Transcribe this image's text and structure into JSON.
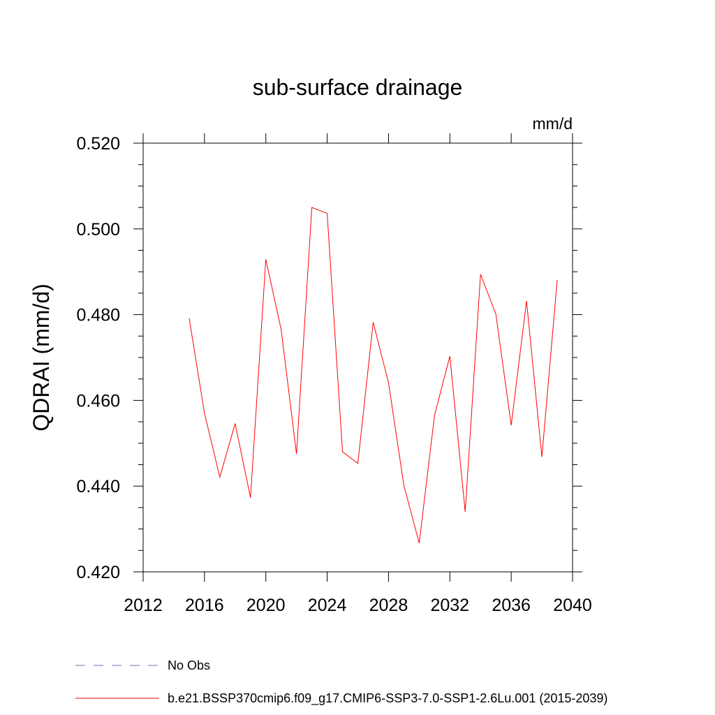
{
  "chart_data": {
    "type": "line",
    "title": "sub-surface drainage",
    "units_label": "mm/d",
    "ylabel": "QDRAI  (mm/d)",
    "xlabel": "",
    "xlim": [
      2012,
      2040
    ],
    "ylim": [
      0.42,
      0.52
    ],
    "x_ticks": [
      "2012",
      "2016",
      "2020",
      "2024",
      "2028",
      "2032",
      "2036",
      "2040"
    ],
    "y_ticks": [
      "0.420",
      "0.440",
      "0.460",
      "0.480",
      "0.500",
      "0.520"
    ],
    "grid": false,
    "series": [
      {
        "name": "b.e21.BSSP370cmip6.f09_g17.CMIP6-SSP3-7.0-SSP1-2.6Lu.001 (2015-2039)",
        "color": "#ff0000",
        "x": [
          2015,
          2016,
          2017,
          2018,
          2019,
          2020,
          2021,
          2022,
          2023,
          2024,
          2025,
          2026,
          2027,
          2028,
          2029,
          2030,
          2031,
          2032,
          2033,
          2034,
          2035,
          2036,
          2037,
          2038,
          2039
        ],
        "values": [
          0.4792,
          0.457,
          0.4421,
          0.4546,
          0.4373,
          0.4929,
          0.4765,
          0.4475,
          0.505,
          0.5036,
          0.448,
          0.4453,
          0.4782,
          0.4641,
          0.4402,
          0.4267,
          0.4565,
          0.4703,
          0.434,
          0.4894,
          0.4801,
          0.4542,
          0.4832,
          0.4468,
          0.4881
        ]
      }
    ],
    "legend": {
      "placement": "bottom-left",
      "entries": [
        {
          "label": "No Obs",
          "color": "#7a6fb0",
          "style": "dashed"
        },
        {
          "label": "b.e21.BSSP370cmip6.f09_g17.CMIP6-SSP3-7.0-SSP1-2.6Lu.001 (2015-2039)",
          "color": "#ff0000",
          "style": "solid"
        }
      ]
    }
  }
}
